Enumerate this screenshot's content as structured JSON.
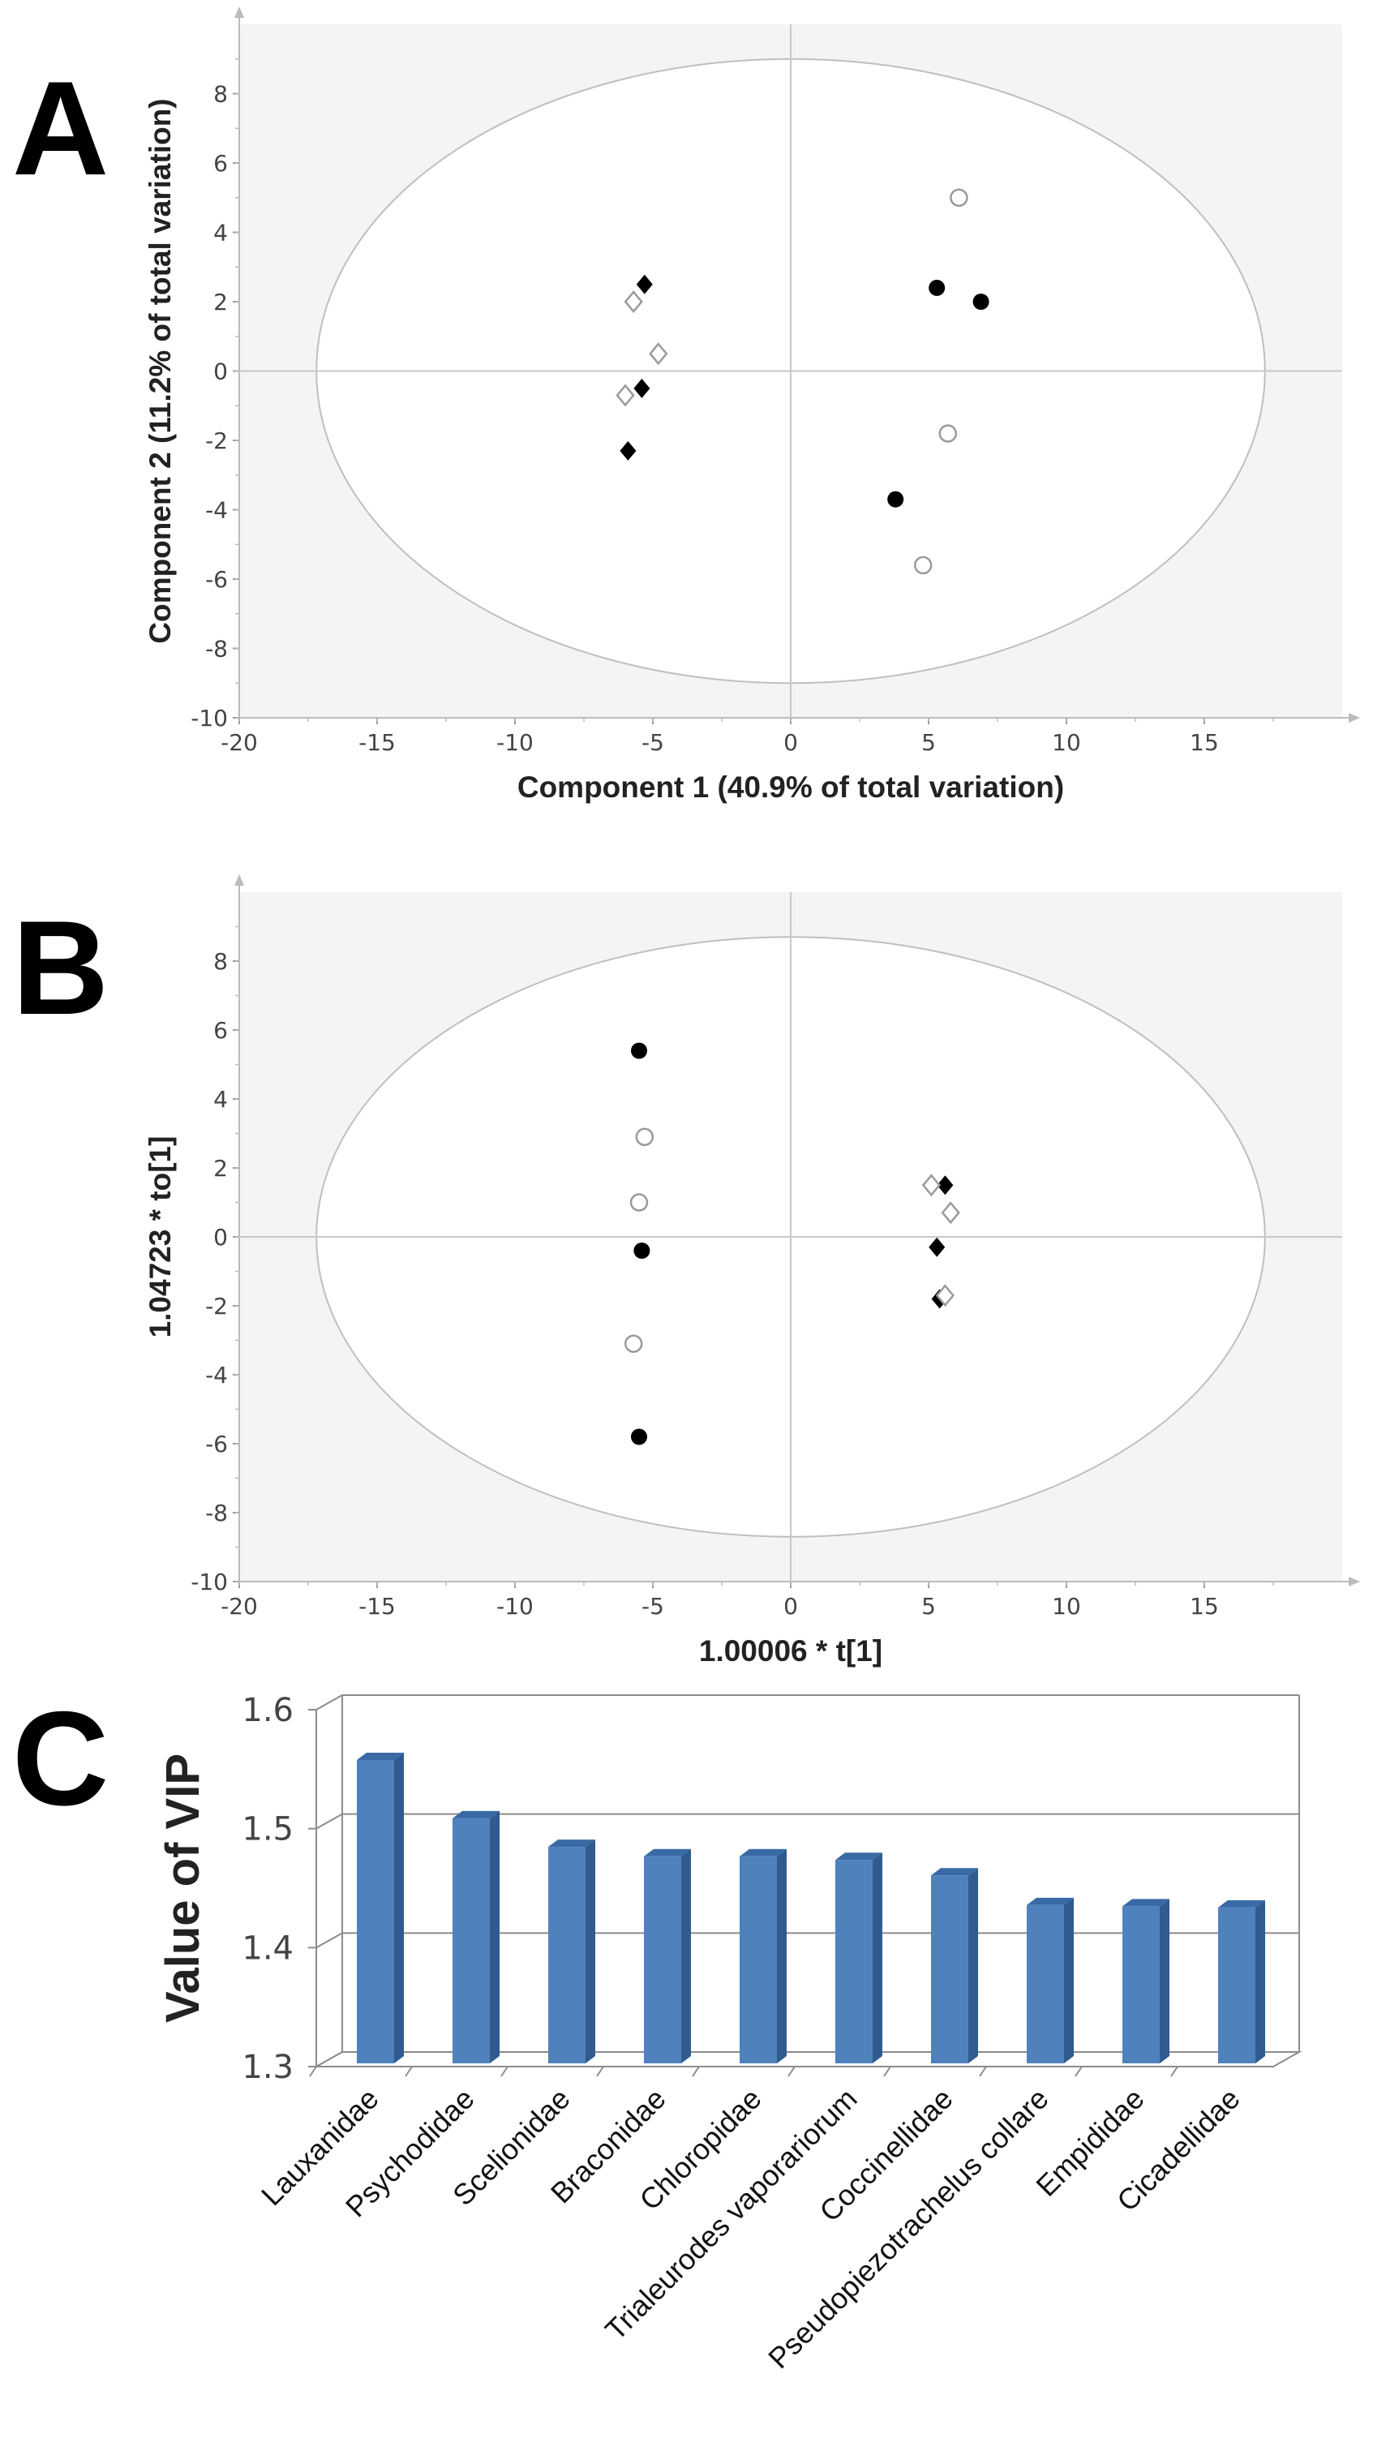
{
  "panels": {
    "A": "A",
    "B": "B",
    "C": "C"
  },
  "colors": {
    "bar_front": "#4f81bd",
    "bar_side": "#2f5b8e",
    "bar_top": "#3a6aa5",
    "plot_bg": "#f4f4f4",
    "ellipse": "#bfbfbf",
    "marker": "#000000",
    "hollow_marker": "#9a9a9a"
  },
  "chart_data": [
    {
      "type": "scatter",
      "panel": "A",
      "xlabel": "Component 1 (40.9% of total variation)",
      "ylabel": "Component 2 (11.2% of total variation)",
      "xlim": [
        -20,
        20
      ],
      "ylim": [
        -10,
        10
      ],
      "xticks": [
        -20,
        -15,
        -10,
        -5,
        0,
        5,
        10,
        15
      ],
      "yticks": [
        -10,
        -8,
        -6,
        -4,
        -2,
        0,
        2,
        4,
        6,
        8
      ],
      "ellipse": {
        "cx": 0,
        "cy": 0,
        "rx": 17.2,
        "ry": 9.0
      },
      "series": [
        {
          "marker": "filled-circle",
          "points": [
            [
              5.3,
              2.4
            ],
            [
              6.9,
              2.0
            ],
            [
              3.8,
              -3.7
            ]
          ]
        },
        {
          "marker": "hollow-circle",
          "points": [
            [
              6.1,
              5.0
            ],
            [
              5.7,
              -1.8
            ],
            [
              4.8,
              -5.6
            ]
          ]
        },
        {
          "marker": "filled-diamond",
          "points": [
            [
              -5.3,
              2.5
            ],
            [
              -5.4,
              -0.5
            ],
            [
              -5.9,
              -2.3
            ]
          ]
        },
        {
          "marker": "hollow-diamond",
          "points": [
            [
              -5.7,
              2.0
            ],
            [
              -4.8,
              0.5
            ],
            [
              -6.0,
              -0.7
            ]
          ]
        }
      ]
    },
    {
      "type": "scatter",
      "panel": "B",
      "xlabel": "1.00006 * t[1]",
      "ylabel": "1.04723 * to[1]",
      "xlim": [
        -20,
        20
      ],
      "ylim": [
        -10,
        10
      ],
      "xticks": [
        -20,
        -15,
        -10,
        -5,
        0,
        5,
        10,
        15
      ],
      "yticks": [
        -10,
        -8,
        -6,
        -4,
        -2,
        0,
        2,
        4,
        6,
        8
      ],
      "ellipse": {
        "cx": 0,
        "cy": 0,
        "rx": 17.2,
        "ry": 8.7
      },
      "series": [
        {
          "marker": "filled-circle",
          "points": [
            [
              -5.5,
              5.4
            ],
            [
              -5.4,
              -0.4
            ],
            [
              -5.5,
              -5.8
            ]
          ]
        },
        {
          "marker": "hollow-circle",
          "points": [
            [
              -5.3,
              2.9
            ],
            [
              -5.5,
              1.0
            ],
            [
              -5.7,
              -3.1
            ]
          ]
        },
        {
          "marker": "filled-diamond",
          "points": [
            [
              5.6,
              1.5
            ],
            [
              5.3,
              -0.3
            ],
            [
              5.4,
              -1.8
            ]
          ]
        },
        {
          "marker": "hollow-diamond",
          "points": [
            [
              5.1,
              1.5
            ],
            [
              5.8,
              0.7
            ],
            [
              5.6,
              -1.7
            ]
          ]
        }
      ]
    },
    {
      "type": "bar",
      "panel": "C",
      "ylabel": "Value of VIP",
      "ylim": [
        1.3,
        1.6
      ],
      "yticks": [
        "1.3",
        "1.4",
        "1.5",
        "1.6"
      ],
      "categories": [
        "Lauxanidae",
        "Psychodidae",
        "Scelionidae",
        "Braconidae",
        "Chloropidae",
        "Trialeurodes vaporariorum",
        "Coccinellidae",
        "Pseudopiezotrachelus collare",
        "Empididae",
        "Cicadellidae"
      ],
      "values": [
        1.555,
        1.506,
        1.482,
        1.474,
        1.474,
        1.471,
        1.458,
        1.433,
        1.432,
        1.431
      ]
    }
  ]
}
